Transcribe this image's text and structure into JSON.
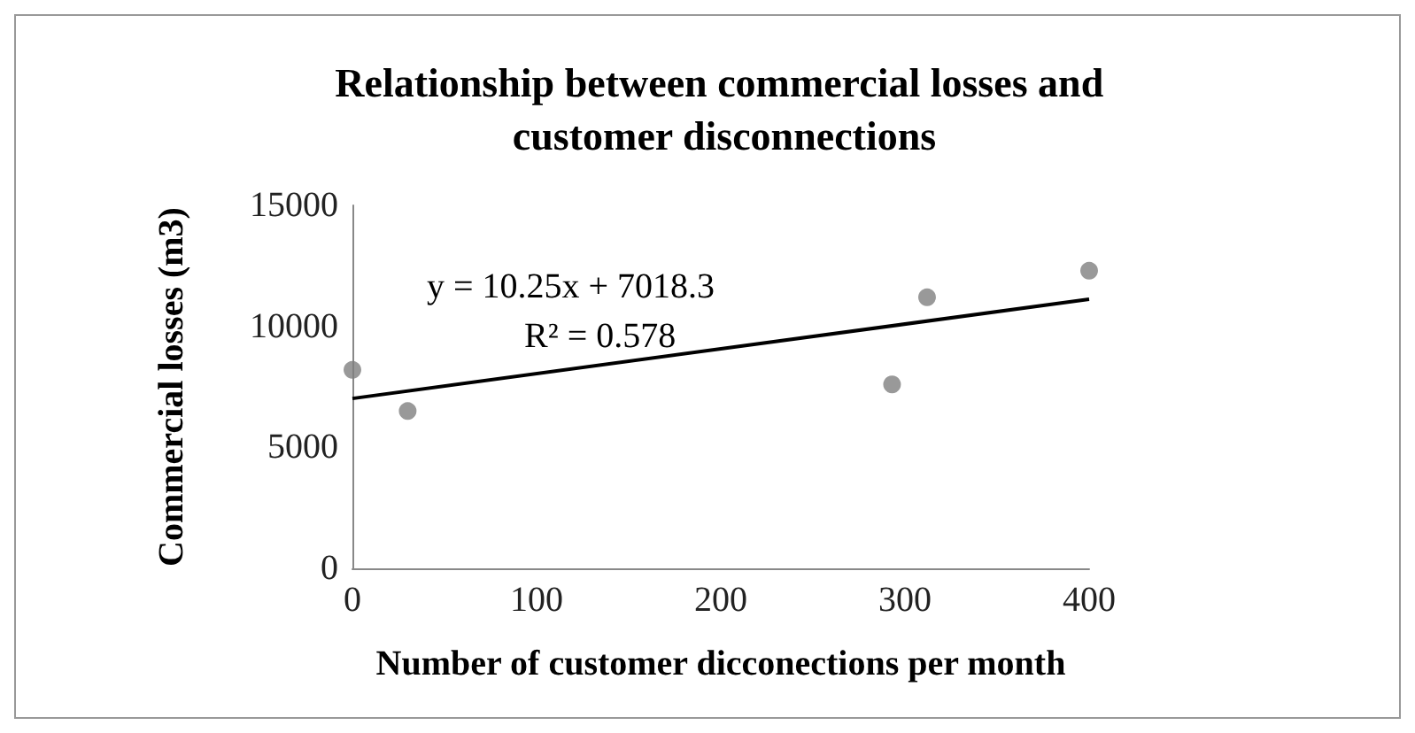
{
  "chart_data": {
    "type": "scatter",
    "title": "Relationship between commercial losses and customer disconnections",
    "xlabel": "Number of customer dicconections per month",
    "ylabel": "Commercial losses (m3)",
    "series": [
      {
        "color": "#808080",
        "x": [
          0,
          30,
          293,
          312,
          400
        ],
        "values": [
          8200,
          6500,
          7600,
          11200,
          12300
        ]
      },
      {
        "type": "line",
        "color": "#000000",
        "x": [
          0,
          400
        ],
        "values": [
          7020,
          11120
        ],
        "marker": "none"
      }
    ],
    "xlim": [
      0,
      400
    ],
    "xticks": [
      0,
      100,
      200,
      300,
      400
    ],
    "ylim": [
      0,
      15000
    ],
    "yticks": [
      0,
      5000,
      10000,
      15000
    ],
    "grid": false,
    "marker": "circle",
    "line_style": "solid",
    "annotations": [
      "y = 10.25x + 7018.3",
      "R² = 0.578"
    ]
  }
}
